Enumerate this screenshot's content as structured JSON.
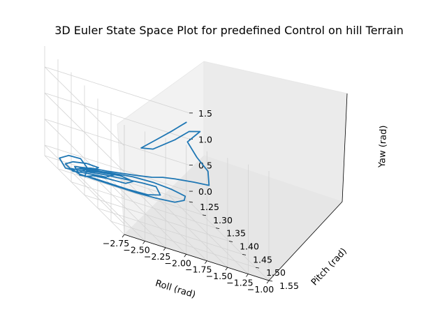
{
  "chart_data": {
    "type": "line",
    "projection": "3d",
    "title": "3D Euler State Space Plot for predefined Control on hill Terrain",
    "xlabel": "Roll (rad)",
    "ylabel": "Pitch (rad)",
    "zlabel": "Yaw (rad)",
    "xlim": [
      -2.75,
      -1.0
    ],
    "ylim": [
      1.25,
      1.55
    ],
    "zlim": [
      -0.2,
      1.9
    ],
    "xticks": [
      "−2.75",
      "−2.50",
      "−2.25",
      "−2.00",
      "−1.75",
      "−1.50",
      "−1.25",
      "−1.00"
    ],
    "yticks": [
      "1.25",
      "1.30",
      "1.35",
      "1.40",
      "1.45",
      "1.50",
      "1.55"
    ],
    "zticks": [
      "0.0",
      "0.5",
      "1.0",
      "1.5"
    ],
    "grid": true,
    "color": "#1f77b4",
    "series": [
      {
        "points": [
          [
            -1.55,
            1.41,
            1.85
          ],
          [
            -1.7,
            1.4,
            1.55
          ],
          [
            -1.86,
            1.39,
            1.25
          ],
          [
            -2.0,
            1.38,
            0.98
          ],
          [
            -1.92,
            1.4,
            1.1
          ],
          [
            -1.72,
            1.42,
            1.48
          ],
          [
            -1.58,
            1.43,
            1.76
          ],
          [
            -1.48,
            1.44,
            1.86
          ],
          [
            -1.6,
            1.43,
            1.55
          ],
          [
            -1.55,
            1.45,
            1.38
          ],
          [
            -1.48,
            1.47,
            1.25
          ],
          [
            -1.5,
            1.48,
            1.02
          ],
          [
            -1.62,
            1.46,
            0.92
          ],
          [
            -1.78,
            1.44,
            0.8
          ],
          [
            -1.9,
            1.43,
            0.72
          ],
          [
            -2.0,
            1.42,
            0.62
          ],
          [
            -2.1,
            1.4,
            0.5
          ],
          [
            -2.22,
            1.38,
            0.38
          ],
          [
            -2.35,
            1.36,
            0.26
          ],
          [
            -2.48,
            1.34,
            0.15
          ],
          [
            -2.58,
            1.33,
            0.05
          ],
          [
            -2.5,
            1.35,
            0.15
          ],
          [
            -2.35,
            1.38,
            0.32
          ],
          [
            -2.2,
            1.41,
            0.48
          ],
          [
            -2.05,
            1.44,
            0.6
          ],
          [
            -1.92,
            1.47,
            0.68
          ],
          [
            -1.82,
            1.49,
            0.7
          ],
          [
            -1.8,
            1.48,
            0.58
          ],
          [
            -1.85,
            1.46,
            0.42
          ],
          [
            -1.98,
            1.43,
            0.28
          ],
          [
            -2.12,
            1.4,
            0.16
          ],
          [
            -2.28,
            1.37,
            0.06
          ],
          [
            -2.44,
            1.34,
            -0.04
          ],
          [
            -2.56,
            1.32,
            -0.1
          ],
          [
            -2.62,
            1.31,
            -0.08
          ],
          [
            -2.5,
            1.33,
            0.02
          ],
          [
            -2.36,
            1.35,
            0.14
          ],
          [
            -2.22,
            1.38,
            0.28
          ],
          [
            -2.08,
            1.41,
            0.42
          ],
          [
            -1.98,
            1.43,
            0.5
          ],
          [
            -1.96,
            1.44,
            0.4
          ],
          [
            -2.05,
            1.42,
            0.26
          ],
          [
            -2.18,
            1.39,
            0.14
          ],
          [
            -2.32,
            1.36,
            0.04
          ],
          [
            -2.46,
            1.33,
            -0.06
          ],
          [
            -2.55,
            1.32,
            -0.12
          ],
          [
            -2.58,
            1.31,
            -0.02
          ],
          [
            -2.48,
            1.33,
            0.1
          ],
          [
            -2.35,
            1.36,
            0.22
          ],
          [
            -2.24,
            1.38,
            0.32
          ],
          [
            -2.16,
            1.4,
            0.36
          ],
          [
            -2.22,
            1.39,
            0.24
          ],
          [
            -2.34,
            1.36,
            0.12
          ],
          [
            -2.45,
            1.34,
            0.02
          ],
          [
            -2.52,
            1.33,
            -0.08
          ],
          [
            -2.5,
            1.33,
            0.04
          ],
          [
            -2.4,
            1.35,
            0.16
          ],
          [
            -2.3,
            1.37,
            0.26
          ],
          [
            -2.36,
            1.36,
            0.14
          ],
          [
            -2.46,
            1.34,
            0.04
          ],
          [
            -2.54,
            1.32,
            -0.06
          ],
          [
            -2.6,
            1.31,
            -0.12
          ],
          [
            -2.66,
            1.3,
            -0.06
          ],
          [
            -2.6,
            1.31,
            0.06
          ],
          [
            -2.5,
            1.33,
            0.18
          ],
          [
            -2.42,
            1.35,
            0.24
          ],
          [
            -2.48,
            1.34,
            0.1
          ],
          [
            -2.56,
            1.32,
            0.0
          ],
          [
            -2.62,
            1.31,
            -0.1
          ],
          [
            -2.66,
            1.3,
            -0.14
          ],
          [
            -2.7,
            1.29,
            -0.02
          ],
          [
            -2.62,
            1.3,
            0.12
          ],
          [
            -2.54,
            1.32,
            0.2
          ],
          [
            -2.48,
            1.33,
            0.08
          ],
          [
            -2.54,
            1.32,
            -0.04
          ]
        ]
      }
    ]
  }
}
